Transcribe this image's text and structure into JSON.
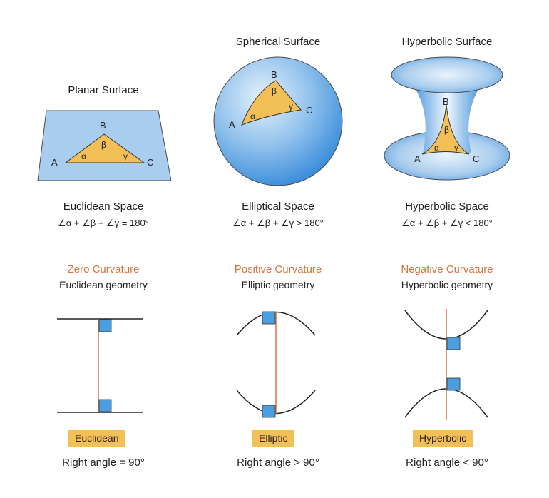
{
  "columns": [
    {
      "surface_title": "Planar Surface",
      "space_name": "Euclidean Space",
      "angle_sum": "∠α + ∠β + ∠γ = 180°",
      "curvature": "Zero Curvature",
      "geometry": "Euclidean geometry",
      "badge": "Euclidean",
      "right_angle": "Right angle = 90°"
    },
    {
      "surface_title": "Spherical Surface",
      "space_name": "Elliptical Space",
      "angle_sum": "∠α + ∠β + ∠γ > 180°",
      "curvature": "Positive Curvature",
      "geometry": "Elliptic geometry",
      "badge": "Elliptic",
      "right_angle": "Right angle > 90°"
    },
    {
      "surface_title": "Hyperbolic Surface",
      "space_name": "Hyperbolic Space",
      "angle_sum": "∠α + ∠β + ∠γ < 180°",
      "curvature": "Negative Curvature",
      "geometry": "Hyperbolic geometry",
      "badge": "Hyperbolic",
      "right_angle": "Right angle < 90°"
    }
  ],
  "vertex_labels": {
    "a": "A",
    "b": "B",
    "c": "C"
  },
  "angle_labels": {
    "alpha": "α",
    "beta": "β",
    "gamma": "γ"
  },
  "colors": {
    "accent_orange": "#d7763f",
    "triangle_fill": "#f2c057",
    "surface_blue": "#a9cdee",
    "square_blue": "#4a9fe0"
  }
}
